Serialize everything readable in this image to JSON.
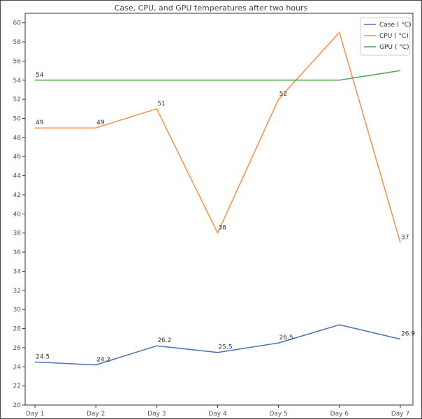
{
  "chart_data": {
    "type": "line",
    "title": "Case, CPU, and GPU temperatures after two hours",
    "xlabel": "",
    "ylabel": "",
    "categories": [
      "Day 1",
      "Day 2",
      "Day 3",
      "Day 4",
      "Day 5",
      "Day 6",
      "Day 7"
    ],
    "ylim": [
      20,
      61
    ],
    "yticks": [
      20,
      22,
      24,
      26,
      28,
      30,
      32,
      34,
      36,
      38,
      40,
      42,
      44,
      46,
      48,
      50,
      52,
      54,
      56,
      58,
      60
    ],
    "grid": false,
    "legend_position": "top-right",
    "series": [
      {
        "name": "Case ( °C)",
        "color": "#4c72b0",
        "values": [
          24.5,
          24.2,
          26.2,
          25.5,
          26.5,
          28.4,
          26.9
        ],
        "labels": [
          "24.5",
          "24.2",
          "26.2",
          "25.5",
          "26.5",
          "",
          "26.9"
        ]
      },
      {
        "name": "CPU ( °C)",
        "color": "#ff8c42",
        "values": [
          49,
          49,
          51,
          38,
          52,
          59,
          37
        ],
        "labels": [
          "49",
          "49",
          "51",
          "38",
          "52",
          "",
          "37"
        ]
      },
      {
        "name": "GPU ( °C)",
        "color": "#55a455",
        "values": [
          54,
          54,
          54,
          54,
          54,
          54,
          55
        ],
        "labels": [
          "54",
          "",
          "",
          "",
          "",
          "",
          ""
        ]
      }
    ]
  }
}
